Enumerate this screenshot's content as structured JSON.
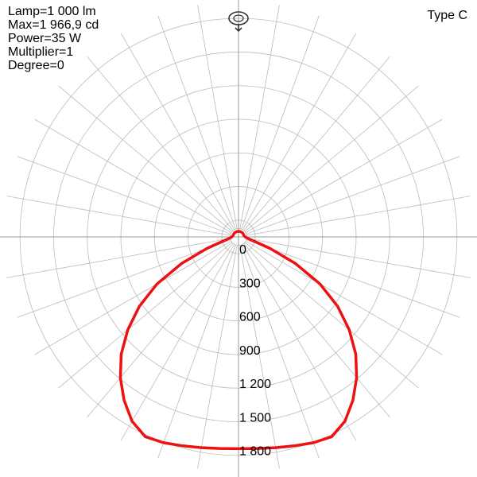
{
  "info": {
    "lamp": "Lamp=1 000 lm",
    "max": "Max=1 966,9 cd",
    "power": "Power=35 W",
    "multiplier": "Multiplier=1",
    "degree": "Degree=0"
  },
  "type_label": "Type C",
  "icons": {
    "rotate": "rotate-view-icon"
  },
  "colors": {
    "curve": "#ee1111",
    "grid": "#bbbbbb",
    "text": "#000000"
  },
  "chart_data": {
    "type": "polar",
    "title": "",
    "radial_unit": "cd",
    "radial_ticks": [
      0,
      300,
      600,
      900,
      1200,
      1500,
      1800
    ],
    "radial_tick_labels": [
      "0",
      "300",
      "600",
      "900",
      "1 200",
      "1 500",
      "1 800"
    ],
    "radial_max": 2100,
    "angular_step_deg": 10,
    "grid": true,
    "series": [
      {
        "angles_deg": [
          0,
          5,
          10,
          15,
          20,
          25,
          30,
          35,
          40,
          45,
          50,
          55,
          60,
          65,
          70,
          75,
          80,
          85,
          90,
          95,
          100,
          105,
          110,
          115,
          120,
          125,
          130,
          135,
          140,
          145,
          150,
          155,
          160,
          165,
          170,
          175,
          180,
          185,
          190,
          195,
          200,
          205,
          210,
          215,
          220,
          225,
          230,
          235,
          240,
          245,
          250,
          255,
          260,
          265,
          270,
          275,
          280,
          285,
          290,
          295,
          300,
          305,
          310,
          315,
          320,
          325,
          330,
          335,
          340,
          345,
          350,
          355,
          360
        ],
        "values": [
          1890,
          1895,
          1910,
          1930,
          1955,
          1966.9,
          1900,
          1780,
          1640,
          1480,
          1290,
          1080,
          840,
          560,
          300,
          140,
          90,
          70,
          60,
          55,
          52,
          50,
          50,
          50,
          50,
          50,
          50,
          50,
          50,
          50,
          50,
          50,
          50,
          50,
          50,
          50,
          50,
          50,
          50,
          50,
          50,
          50,
          50,
          50,
          50,
          50,
          50,
          50,
          50,
          50,
          50,
          50,
          52,
          55,
          60,
          70,
          90,
          140,
          300,
          560,
          840,
          1080,
          1290,
          1480,
          1640,
          1780,
          1900,
          1966.9,
          1955,
          1930,
          1910,
          1895,
          1890
        ]
      }
    ]
  }
}
